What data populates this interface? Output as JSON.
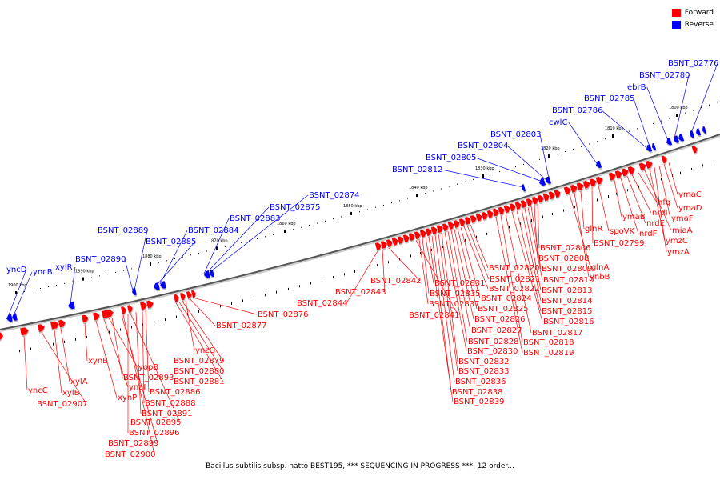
{
  "legend": {
    "forward_label": "Forward",
    "reverse_label": "Reverse",
    "forward_color": "#ff0000",
    "reverse_color": "#0000ff"
  },
  "caption": "Bacillus subtilis subsp. natto BEST195, *** SEQUENCING IN PROGRESS ***, 12 order...",
  "scale_ticks": [
    "1800 kbp",
    "1810 kbp",
    "1820 kbp",
    "1830 kbp",
    "1840 kbp",
    "1850 kbp",
    "1860 kbp",
    "1870 kbp",
    "1880 kbp",
    "1890 kbp",
    "1900 kbp"
  ],
  "reverse_genes": [
    "yncD",
    "yncB",
    "xylR",
    "BSNT_02890",
    "BSNT_02889",
    "BSNT_02885",
    "BSNT_02884",
    "BSNT_02883",
    "BSNT_02875",
    "BSNT_02874",
    "BSNT_02812",
    "BSNT_02805",
    "BSNT_02804",
    "BSNT_02803",
    "cwlC",
    "BSNT_02786",
    "BSNT_02785",
    "ebrB",
    "BSNT_02780",
    "BSNT_02776"
  ],
  "forward_genes": [
    "yncC",
    "BSNT_02907",
    "xylB",
    "xylA",
    "xynB",
    "xynP",
    "ynaI",
    "yopB",
    "BSNT_02893",
    "BSNT_02899",
    "BSNT_02900",
    "BSNT_02896",
    "BSNT_02895",
    "BSNT_02891",
    "BSNT_02888",
    "BSNT_02886",
    "BSNT_02881",
    "BSNT_02880",
    "BSNT_02879",
    "ynzG",
    "BSNT_02877",
    "BSNT_02876",
    "BSNT_02844",
    "BSNT_02843",
    "BSNT_02842",
    "BSNT_02841",
    "BSNT_02837",
    "BSNT_02835",
    "BSNT_02831",
    "BSNT_02839",
    "BSNT_02838",
    "BSNT_02836",
    "BSNT_02833",
    "BSNT_02832",
    "BSNT_02830",
    "BSNT_02828",
    "BSNT_02827",
    "BSNT_02826",
    "BSNT_02825",
    "BSNT_02824",
    "BSNT_02822",
    "BSNT_02821",
    "BSNT_02820",
    "BSNT_02819",
    "BSNT_02818",
    "BSNT_02817",
    "BSNT_02816",
    "BSNT_02815",
    "BSNT_02814",
    "BSNT_02813",
    "BSNT_02810",
    "BSNT_02809",
    "BSNT_02808",
    "BSNT_02806",
    "glnA",
    "ynbB",
    "glnR",
    "BSNT_02799",
    "spoVK",
    "ymaB",
    "nrdF",
    "nrdE",
    "nrdI",
    "hfq",
    "miaA",
    "ymzC",
    "ymzA",
    "ymaF",
    "ymaD",
    "ymaC"
  ]
}
